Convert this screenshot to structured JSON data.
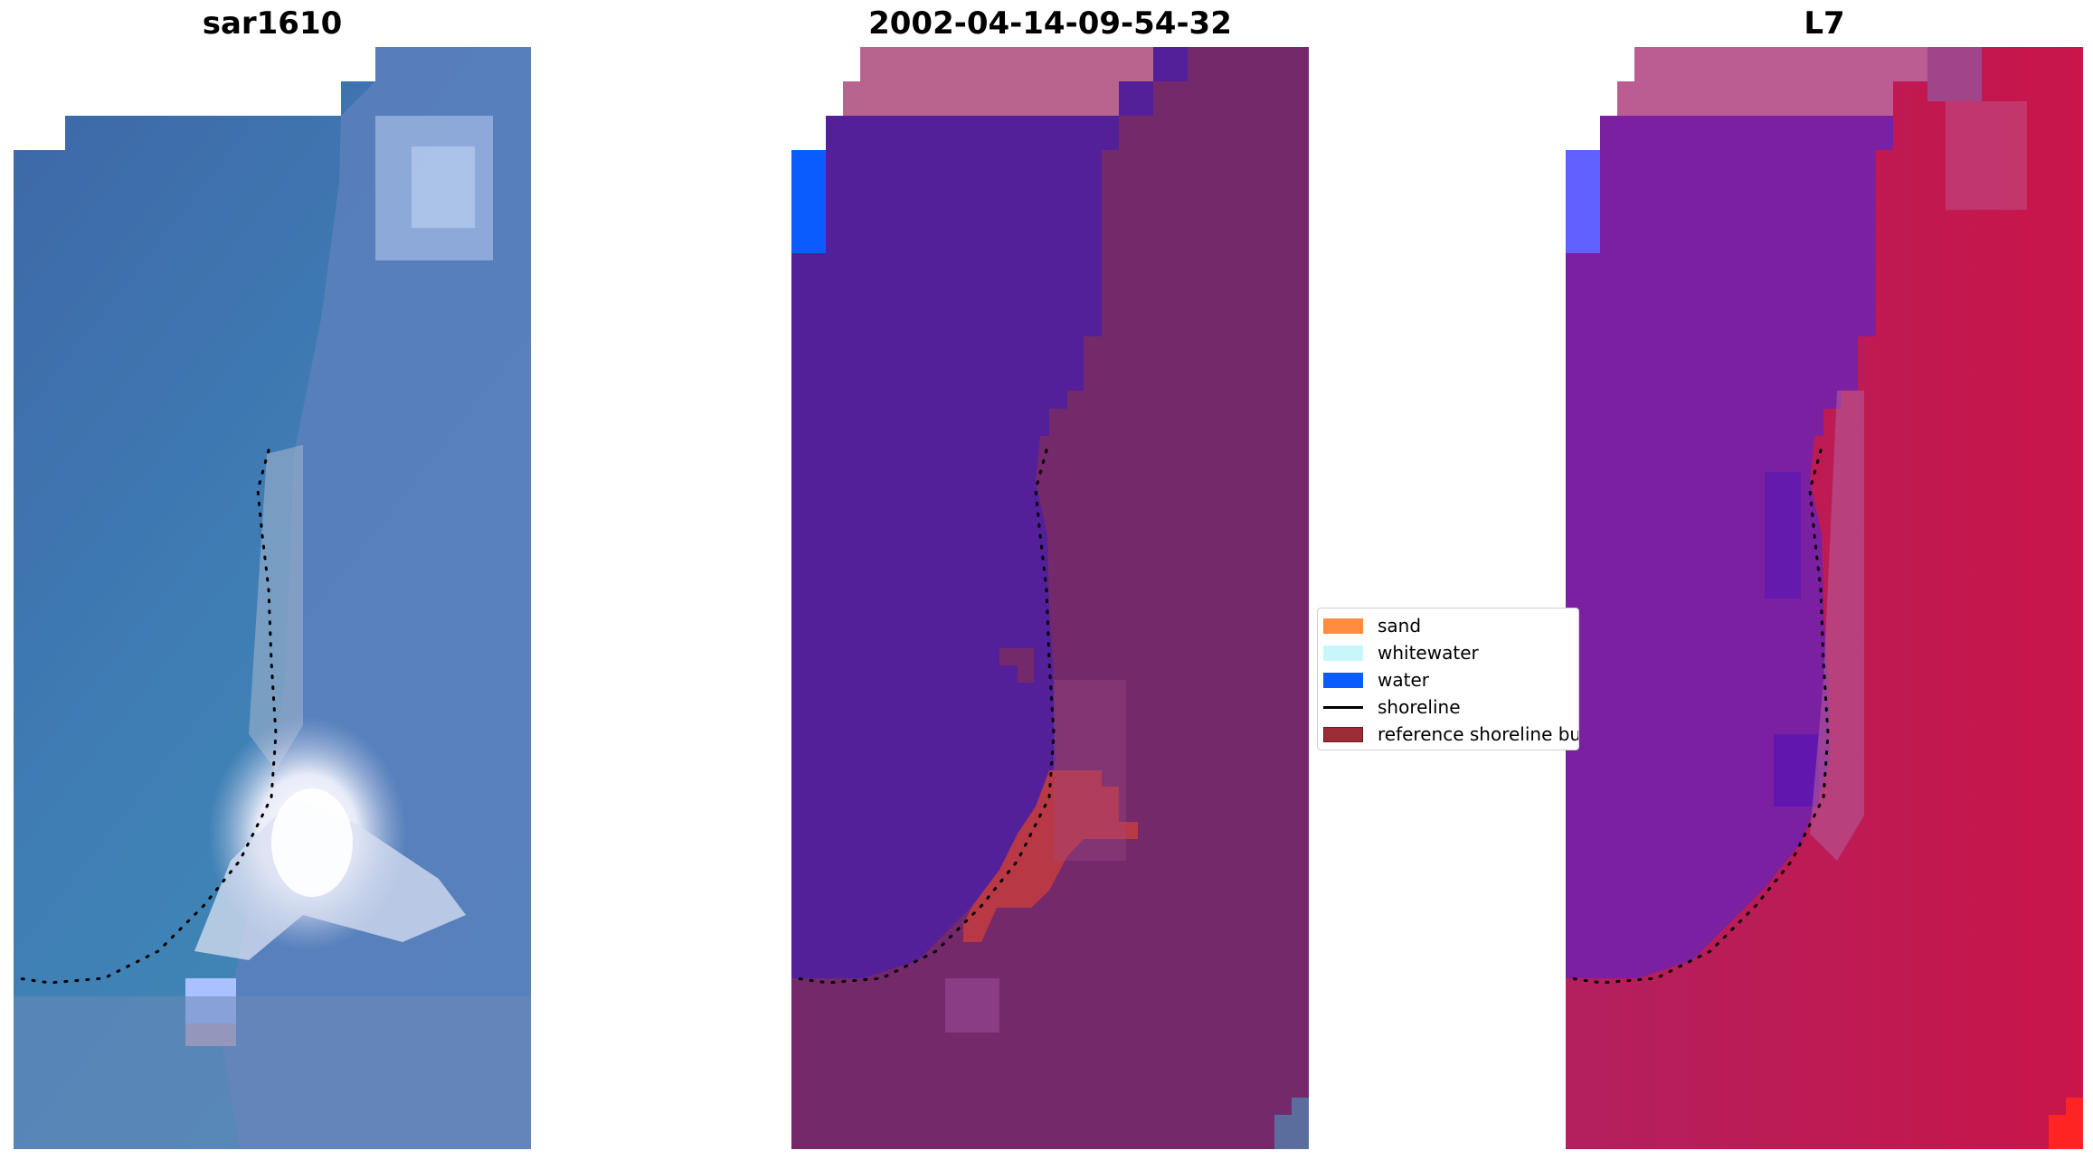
{
  "panels": [
    {
      "title": "sar1610",
      "style": "rgb"
    },
    {
      "title": "2002-04-14-09-54-32",
      "style": "classified"
    },
    {
      "title": "L7",
      "style": "index"
    }
  ],
  "legend": {
    "entries": [
      {
        "label": "sand",
        "kind": "patch",
        "color": "#ff8c3f"
      },
      {
        "label": "whitewater",
        "kind": "patch",
        "color": "#c8f7fb"
      },
      {
        "label": "water",
        "kind": "patch",
        "color": "#0a5cff"
      },
      {
        "label": "shoreline",
        "kind": "line",
        "color": "#000000"
      },
      {
        "label": "reference shoreline buffer",
        "kind": "patch",
        "color": "#9b2c36"
      }
    ]
  },
  "colors": {
    "rgb_water_deep": "#3d66a6",
    "rgb_water_shallow": "#3f88b8",
    "rgb_cloud": "#9ab4e0",
    "rgb_sand_white": "#f5f5fa",
    "classified_water": "#54209a",
    "classified_land": "#74296a",
    "classified_cloud": "#b8648f",
    "classified_sand": "#b83846",
    "classified_water_edge": "#0a5cff",
    "index_water": "#7a20a0",
    "index_land": "#c2194e",
    "index_cloud": "#bb5d92",
    "index_edge_blue": "#6060ff",
    "index_corner_red": "#ff2424"
  }
}
